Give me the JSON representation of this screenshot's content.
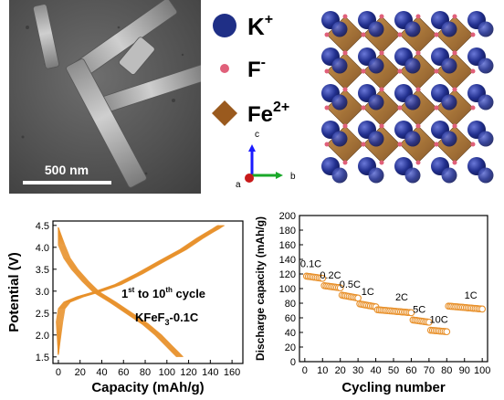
{
  "sem_image": {
    "scale_bar_label": "500 nm"
  },
  "legend": {
    "items": [
      {
        "ion": "K",
        "charge": "+",
        "color": "#1f2f86",
        "shape": "circle"
      },
      {
        "ion": "F",
        "charge": "-",
        "color": "#e0607a",
        "shape": "circle"
      },
      {
        "ion": "Fe",
        "charge": "2+",
        "color": "#9a5a1e",
        "shape": "diamond"
      }
    ]
  },
  "axes_triad": {
    "c": "c",
    "a": "a",
    "b": "b"
  },
  "charts": {
    "voltage_profile": {
      "xlabel": "Capacity (mAh/g)",
      "ylabel": "Potential (V)",
      "annotation_line1_sup": "st",
      "annotation_line1_pre": "1",
      "annotation_line1_mid": " to 10",
      "annotation_line1_sup2": "th",
      "annotation_line1_post": " cycle",
      "annotation_line2_pre": "KFeF",
      "annotation_line2_sub": "3",
      "annotation_line2_post": "-0.1C"
    },
    "rate_performance": {
      "xlabel": "Cycling number",
      "ylabel": "Discharge capacity (mAh/g)",
      "rate_labels": [
        "0.1C",
        "0.2C",
        "0.5C",
        "1C",
        "2C",
        "5C",
        "10C",
        "1C"
      ]
    }
  },
  "chart_data": [
    {
      "type": "line",
      "title": "",
      "xlabel": "Capacity (mAh/g)",
      "ylabel": "Potential (V)",
      "xlim": [
        -5,
        170
      ],
      "ylim": [
        1.35,
        4.6
      ],
      "x_ticks": [
        0,
        20,
        40,
        60,
        80,
        100,
        120,
        140,
        160
      ],
      "y_ticks": [
        1.5,
        2.0,
        2.5,
        3.0,
        3.5,
        4.0,
        4.5
      ],
      "color": "#e8902a",
      "series": [
        {
          "x": [
            0,
            3,
            8,
            15,
            25,
            35,
            50,
            65,
            80,
            92,
            102,
            108,
            112
          ],
          "y": [
            4.45,
            4.05,
            3.75,
            3.5,
            3.22,
            2.98,
            2.75,
            2.5,
            2.25,
            2.0,
            1.75,
            1.6,
            1.5
          ]
        },
        {
          "x": [
            0,
            1,
            3,
            8,
            20,
            35,
            55,
            75,
            95,
            115,
            130,
            140,
            145,
            148,
            150
          ],
          "y": [
            1.55,
            2.3,
            2.6,
            2.75,
            2.87,
            2.98,
            3.15,
            3.4,
            3.68,
            3.95,
            4.2,
            4.35,
            4.42,
            4.47,
            4.5
          ]
        }
      ],
      "group_count": 10,
      "group_spread_capacity": 3
    },
    {
      "type": "scatter",
      "title": "",
      "xlabel": "Cycling number",
      "ylabel": "Discharge capacity (mAh/g)",
      "xlim": [
        -3,
        103
      ],
      "ylim": [
        0,
        200
      ],
      "x_ticks": [
        0,
        10,
        20,
        30,
        40,
        50,
        60,
        70,
        80,
        90,
        100
      ],
      "y_ticks": [
        0,
        20,
        40,
        60,
        80,
        100,
        120,
        140,
        160,
        180,
        200
      ],
      "marker": "open-circle",
      "color": "#e8902a",
      "segments": [
        {
          "label": "0.1C",
          "x_start": 1,
          "x_end": 10,
          "y_start": 117,
          "y_end": 114
        },
        {
          "label": "0.2C",
          "x_start": 11,
          "x_end": 20,
          "y_start": 104,
          "y_end": 101
        },
        {
          "label": "0.5C",
          "x_start": 21,
          "x_end": 30,
          "y_start": 91,
          "y_end": 87
        },
        {
          "label": "1C",
          "x_start": 31,
          "x_end": 40,
          "y_start": 79,
          "y_end": 75
        },
        {
          "label": "2C",
          "x_start": 41,
          "x_end": 60,
          "y_start": 71,
          "y_end": 67
        },
        {
          "label": "5C",
          "x_start": 61,
          "x_end": 70,
          "y_start": 57,
          "y_end": 54
        },
        {
          "label": "10C",
          "x_start": 71,
          "x_end": 80,
          "y_start": 43,
          "y_end": 41
        },
        {
          "label": "1C",
          "x_start": 81,
          "x_end": 100,
          "y_start": 76,
          "y_end": 72
        }
      ]
    }
  ]
}
